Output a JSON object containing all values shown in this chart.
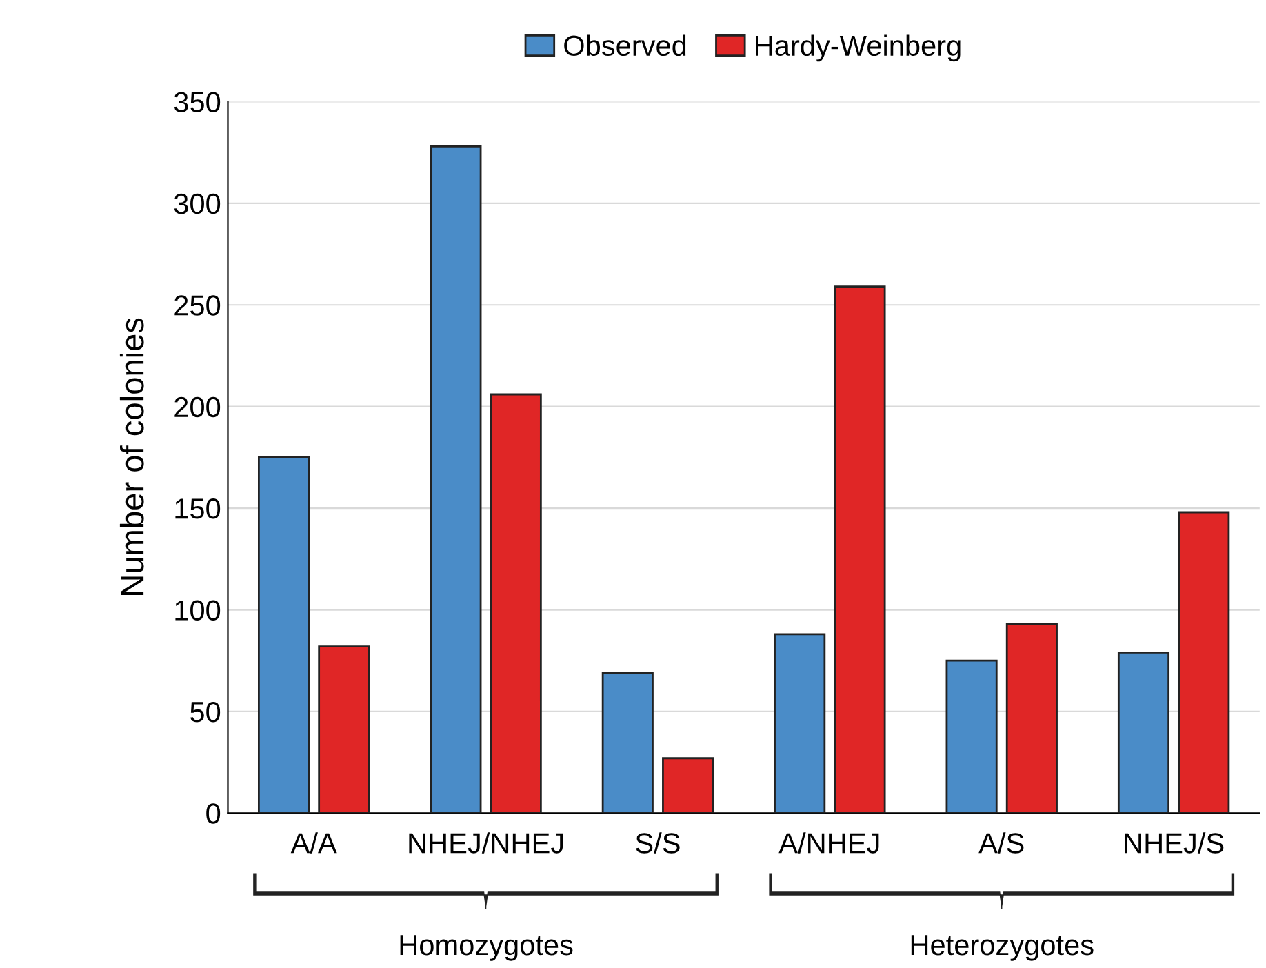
{
  "chart_data": {
    "type": "bar",
    "ylabel": "Number of colonies",
    "categories": [
      "A/A",
      "NHEJ/NHEJ",
      "S/S",
      "A/NHEJ",
      "A/S",
      "NHEJ/S"
    ],
    "series": [
      {
        "name": "Observed",
        "color": "#4a8cc8",
        "values": [
          175,
          328,
          69,
          88,
          75,
          79
        ]
      },
      {
        "name": "Hardy-Weinberg",
        "color": "#e02626",
        "values": [
          82,
          206,
          27,
          259,
          93,
          148
        ]
      }
    ],
    "ylim": [
      0,
      350
    ],
    "yticks": [
      0,
      50,
      100,
      150,
      200,
      250,
      300,
      350
    ],
    "grid": "y",
    "legend": "top",
    "annotations": [
      "Homozygotes",
      "Heterozygotes"
    ]
  }
}
